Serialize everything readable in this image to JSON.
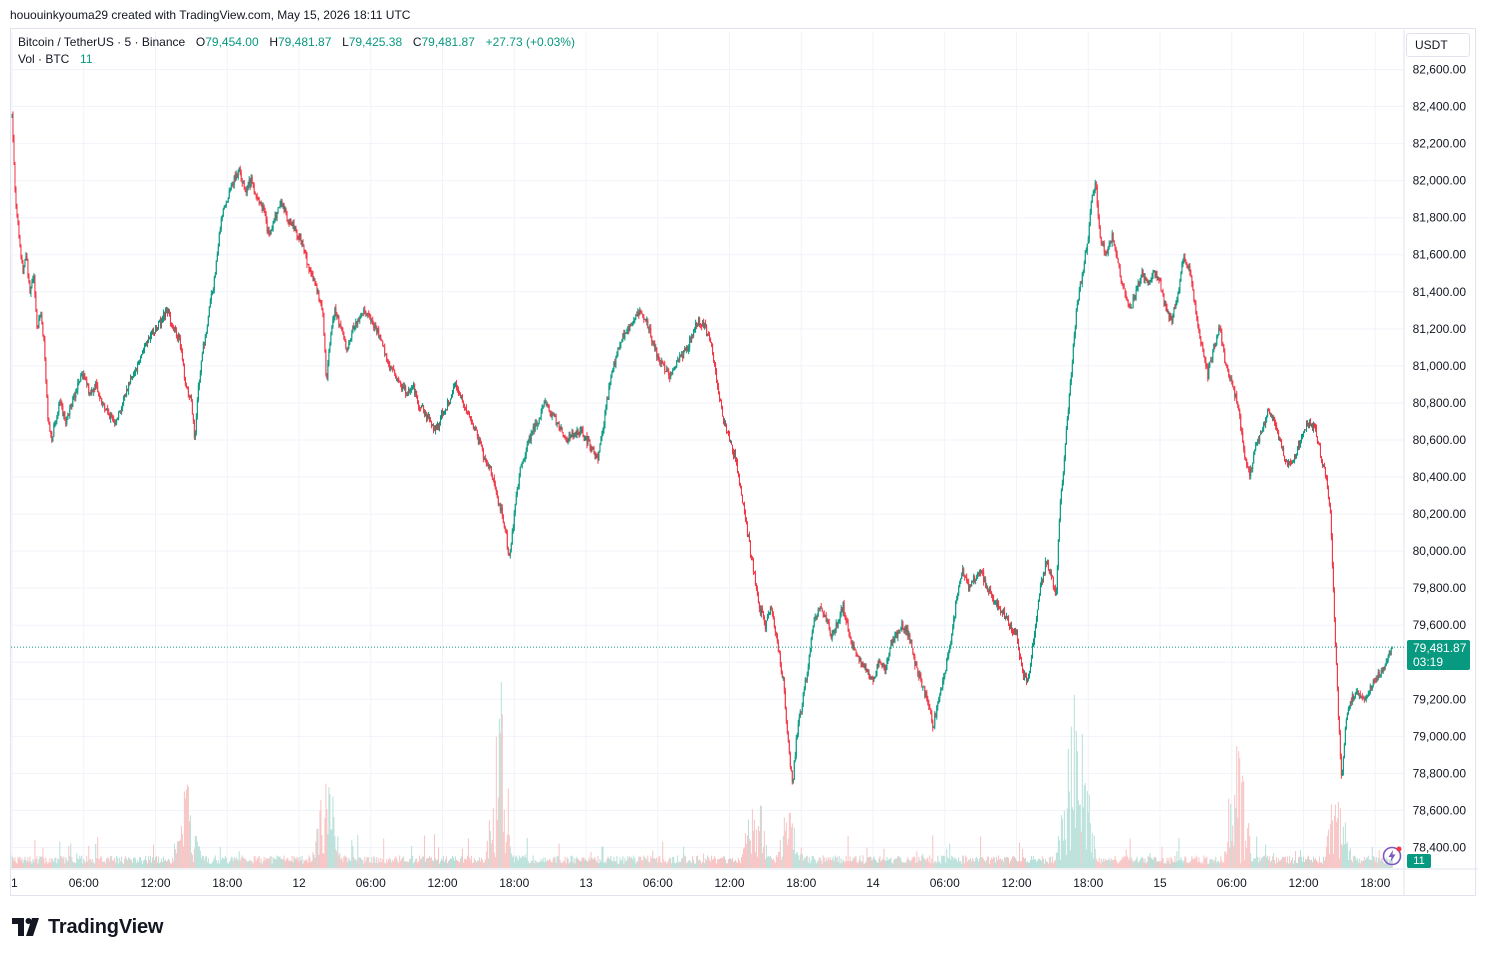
{
  "header": {
    "snapshot_line": "hououinkyouma29 created with TradingView.com, May 15, 2026 18:11 UTC"
  },
  "legend": {
    "symbol": "Bitcoin / TetherUS · 5 · Binance",
    "open_label": "O",
    "open_value": "79,454.00",
    "high_label": "H",
    "high_value": "79,481.87",
    "low_label": "L",
    "low_value": "79,425.38",
    "close_label": "C",
    "close_value": "79,481.87",
    "change": "+27.73 (+0.03%)",
    "volume_label": "Vol · BTC",
    "volume_value": "11"
  },
  "price_axis": {
    "currency_button": "USDT",
    "last_price": "79,481.87",
    "countdown": "03:19",
    "volume_badge": "11"
  },
  "footer": {
    "brand": "TradingView"
  },
  "colors": {
    "up": "#089981",
    "down": "#f23645",
    "up_volume": "#b6dfd8",
    "down_volume": "#f7c3c3",
    "grid": "#f0f3fa"
  },
  "chart_data": {
    "type": "candlestick",
    "symbol": "BTC/USDT",
    "exchange": "Binance",
    "interval_minutes": 5,
    "y_ticks": [
      78400,
      78600,
      78800,
      79000,
      79200,
      79400,
      79600,
      79800,
      80000,
      80200,
      80400,
      80600,
      80800,
      81000,
      81200,
      81400,
      81600,
      81800,
      82000,
      82200,
      82400,
      82600
    ],
    "y_tick_labels": [
      "78,400.00",
      "78,600.00",
      "78,800.00",
      "79,000.00",
      "79,200.00",
      "79,400.00",
      "79,600.00",
      "79,800.00",
      "80,000.00",
      "80,200.00",
      "80,400.00",
      "80,600.00",
      "80,800.00",
      "81,000.00",
      "81,200.00",
      "81,400.00",
      "81,600.00",
      "81,800.00",
      "82,000.00",
      "82,200.00",
      "82,400.00",
      "82,600.00"
    ],
    "ylim": [
      78300,
      82700
    ],
    "x_tick_labels": [
      "1",
      "06:00",
      "12:00",
      "18:00",
      "12",
      "06:00",
      "12:00",
      "18:00",
      "13",
      "06:00",
      "12:00",
      "18:00",
      "14",
      "06:00",
      "12:00",
      "18:00",
      "15",
      "06:00",
      "12:00",
      "18:00"
    ],
    "x_tick_hours": [
      0,
      6,
      12,
      18,
      24,
      30,
      36,
      42,
      48,
      54,
      60,
      66,
      72,
      78,
      84,
      90,
      96,
      102,
      108,
      114
    ],
    "x_range_hours": [
      0,
      115.4
    ],
    "price_path": [
      [
        0.0,
        82350
      ],
      [
        0.3,
        81900
      ],
      [
        0.6,
        81700
      ],
      [
        0.9,
        81500
      ],
      [
        1.2,
        81600
      ],
      [
        1.5,
        81400
      ],
      [
        1.8,
        81500
      ],
      [
        2.1,
        81200
      ],
      [
        2.4,
        81300
      ],
      [
        2.7,
        81100
      ],
      [
        3.0,
        80700
      ],
      [
        3.3,
        80600
      ],
      [
        3.6,
        80700
      ],
      [
        4.0,
        80800
      ],
      [
        4.5,
        80700
      ],
      [
        5.0,
        80800
      ],
      [
        5.5,
        80900
      ],
      [
        6.0,
        80950
      ],
      [
        6.5,
        80850
      ],
      [
        7.0,
        80900
      ],
      [
        7.5,
        80800
      ],
      [
        8.0,
        80750
      ],
      [
        8.5,
        80700
      ],
      [
        9.0,
        80750
      ],
      [
        9.5,
        80850
      ],
      [
        10.0,
        80950
      ],
      [
        10.5,
        81000
      ],
      [
        11.0,
        81100
      ],
      [
        11.5,
        81150
      ],
      [
        12.0,
        81200
      ],
      [
        12.5,
        81250
      ],
      [
        13.0,
        81300
      ],
      [
        13.5,
        81200
      ],
      [
        14.0,
        81150
      ],
      [
        14.5,
        80900
      ],
      [
        15.0,
        80800
      ],
      [
        15.3,
        80600
      ],
      [
        15.6,
        80900
      ],
      [
        16.0,
        81100
      ],
      [
        16.5,
        81300
      ],
      [
        17.0,
        81500
      ],
      [
        17.5,
        81800
      ],
      [
        18.0,
        81900
      ],
      [
        18.5,
        82000
      ],
      [
        19.0,
        82050
      ],
      [
        19.5,
        81950
      ],
      [
        20.0,
        82000
      ],
      [
        20.5,
        81900
      ],
      [
        21.0,
        81850
      ],
      [
        21.5,
        81700
      ],
      [
        22.0,
        81800
      ],
      [
        22.5,
        81900
      ],
      [
        23.0,
        81800
      ],
      [
        23.5,
        81750
      ],
      [
        24.0,
        81700
      ],
      [
        24.5,
        81600
      ],
      [
        25.0,
        81500
      ],
      [
        25.5,
        81400
      ],
      [
        26.0,
        81300
      ],
      [
        26.3,
        80900
      ],
      [
        26.6,
        81150
      ],
      [
        27.0,
        81300
      ],
      [
        27.5,
        81200
      ],
      [
        28.0,
        81100
      ],
      [
        28.5,
        81200
      ],
      [
        29.0,
        81250
      ],
      [
        29.5,
        81300
      ],
      [
        30.0,
        81250
      ],
      [
        30.5,
        81200
      ],
      [
        31.0,
        81100
      ],
      [
        31.5,
        81000
      ],
      [
        32.0,
        80950
      ],
      [
        32.5,
        80900
      ],
      [
        33.0,
        80850
      ],
      [
        33.5,
        80900
      ],
      [
        34.0,
        80800
      ],
      [
        34.5,
        80750
      ],
      [
        35.0,
        80700
      ],
      [
        35.5,
        80650
      ],
      [
        36.0,
        80750
      ],
      [
        36.5,
        80800
      ],
      [
        37.0,
        80900
      ],
      [
        37.5,
        80850
      ],
      [
        38.0,
        80750
      ],
      [
        38.5,
        80700
      ],
      [
        39.0,
        80600
      ],
      [
        39.5,
        80500
      ],
      [
        40.0,
        80450
      ],
      [
        40.5,
        80300
      ],
      [
        41.0,
        80200
      ],
      [
        41.3,
        80100
      ],
      [
        41.6,
        79950
      ],
      [
        42.0,
        80200
      ],
      [
        42.5,
        80450
      ],
      [
        43.0,
        80550
      ],
      [
        43.5,
        80650
      ],
      [
        44.0,
        80700
      ],
      [
        44.5,
        80800
      ],
      [
        45.0,
        80750
      ],
      [
        45.5,
        80700
      ],
      [
        46.0,
        80650
      ],
      [
        46.5,
        80600
      ],
      [
        47.0,
        80650
      ],
      [
        47.5,
        80650
      ],
      [
        48.0,
        80600
      ],
      [
        48.5,
        80550
      ],
      [
        49.0,
        80500
      ],
      [
        49.5,
        80700
      ],
      [
        50.0,
        80900
      ],
      [
        50.5,
        81050
      ],
      [
        51.0,
        81150
      ],
      [
        51.5,
        81200
      ],
      [
        52.0,
        81250
      ],
      [
        52.5,
        81300
      ],
      [
        53.0,
        81250
      ],
      [
        53.5,
        81150
      ],
      [
        54.0,
        81050
      ],
      [
        54.5,
        81000
      ],
      [
        55.0,
        80950
      ],
      [
        55.5,
        81000
      ],
      [
        56.0,
        81050
      ],
      [
        56.5,
        81100
      ],
      [
        57.0,
        81200
      ],
      [
        57.5,
        81250
      ],
      [
        58.0,
        81200
      ],
      [
        58.5,
        81100
      ],
      [
        59.0,
        80900
      ],
      [
        59.5,
        80700
      ],
      [
        60.0,
        80600
      ],
      [
        60.5,
        80500
      ],
      [
        61.0,
        80300
      ],
      [
        61.5,
        80100
      ],
      [
        62.0,
        79900
      ],
      [
        62.5,
        79700
      ],
      [
        63.0,
        79600
      ],
      [
        63.5,
        79700
      ],
      [
        64.0,
        79500
      ],
      [
        64.5,
        79300
      ],
      [
        65.0,
        78900
      ],
      [
        65.3,
        78750
      ],
      [
        65.6,
        79000
      ],
      [
        66.0,
        79150
      ],
      [
        66.5,
        79350
      ],
      [
        67.0,
        79600
      ],
      [
        67.5,
        79700
      ],
      [
        68.0,
        79650
      ],
      [
        68.5,
        79550
      ],
      [
        69.0,
        79600
      ],
      [
        69.5,
        79700
      ],
      [
        70.0,
        79550
      ],
      [
        70.5,
        79450
      ],
      [
        71.0,
        79400
      ],
      [
        71.5,
        79350
      ],
      [
        72.0,
        79300
      ],
      [
        72.5,
        79400
      ],
      [
        73.0,
        79350
      ],
      [
        73.5,
        79500
      ],
      [
        74.0,
        79550
      ],
      [
        74.5,
        79600
      ],
      [
        75.0,
        79550
      ],
      [
        75.5,
        79400
      ],
      [
        76.0,
        79300
      ],
      [
        76.5,
        79200
      ],
      [
        77.0,
        79050
      ],
      [
        77.5,
        79200
      ],
      [
        78.0,
        79350
      ],
      [
        78.5,
        79500
      ],
      [
        79.0,
        79750
      ],
      [
        79.5,
        79900
      ],
      [
        80.0,
        79800
      ],
      [
        80.5,
        79850
      ],
      [
        81.0,
        79900
      ],
      [
        81.5,
        79800
      ],
      [
        82.0,
        79750
      ],
      [
        82.5,
        79700
      ],
      [
        83.0,
        79650
      ],
      [
        83.5,
        79600
      ],
      [
        84.0,
        79550
      ],
      [
        84.5,
        79350
      ],
      [
        85.0,
        79300
      ],
      [
        85.5,
        79550
      ],
      [
        86.0,
        79800
      ],
      [
        86.5,
        79950
      ],
      [
        87.0,
        79850
      ],
      [
        87.3,
        79750
      ],
      [
        87.6,
        80200
      ],
      [
        88.0,
        80500
      ],
      [
        88.5,
        80900
      ],
      [
        89.0,
        81300
      ],
      [
        89.5,
        81500
      ],
      [
        90.0,
        81700
      ],
      [
        90.3,
        81900
      ],
      [
        90.6,
        82000
      ],
      [
        91.0,
        81700
      ],
      [
        91.5,
        81600
      ],
      [
        92.0,
        81700
      ],
      [
        92.5,
        81550
      ],
      [
        93.0,
        81400
      ],
      [
        93.5,
        81300
      ],
      [
        94.0,
        81400
      ],
      [
        94.5,
        81500
      ],
      [
        95.0,
        81450
      ],
      [
        95.5,
        81500
      ],
      [
        96.0,
        81450
      ],
      [
        96.5,
        81300
      ],
      [
        97.0,
        81250
      ],
      [
        97.5,
        81400
      ],
      [
        98.0,
        81600
      ],
      [
        98.5,
        81500
      ],
      [
        99.0,
        81300
      ],
      [
        99.5,
        81100
      ],
      [
        100.0,
        80950
      ],
      [
        100.5,
        81100
      ],
      [
        101.0,
        81200
      ],
      [
        101.5,
        81000
      ],
      [
        102.0,
        80900
      ],
      [
        102.5,
        80800
      ],
      [
        103.0,
        80550
      ],
      [
        103.5,
        80400
      ],
      [
        104.0,
        80550
      ],
      [
        104.5,
        80650
      ],
      [
        105.0,
        80750
      ],
      [
        105.5,
        80700
      ],
      [
        106.0,
        80600
      ],
      [
        106.5,
        80500
      ],
      [
        107.0,
        80450
      ],
      [
        107.5,
        80550
      ],
      [
        108.0,
        80650
      ],
      [
        108.5,
        80700
      ],
      [
        109.0,
        80650
      ],
      [
        109.5,
        80500
      ],
      [
        110.0,
        80350
      ],
      [
        110.3,
        80150
      ],
      [
        110.6,
        79600
      ],
      [
        111.0,
        79000
      ],
      [
        111.2,
        78750
      ],
      [
        111.5,
        79050
      ],
      [
        112.0,
        79200
      ],
      [
        112.5,
        79250
      ],
      [
        113.0,
        79200
      ],
      [
        113.5,
        79250
      ],
      [
        114.0,
        79300
      ],
      [
        114.5,
        79350
      ],
      [
        115.0,
        79420
      ],
      [
        115.4,
        79481.87
      ]
    ],
    "last_price": 79481.87,
    "volume_spike_hours": [
      [
        14.7,
        4
      ],
      [
        26.3,
        5
      ],
      [
        40.8,
        9
      ],
      [
        62.2,
        4
      ],
      [
        65.0,
        3
      ],
      [
        88.5,
        6
      ],
      [
        89.5,
        6
      ],
      [
        102.5,
        6
      ],
      [
        110.8,
        4
      ]
    ]
  }
}
